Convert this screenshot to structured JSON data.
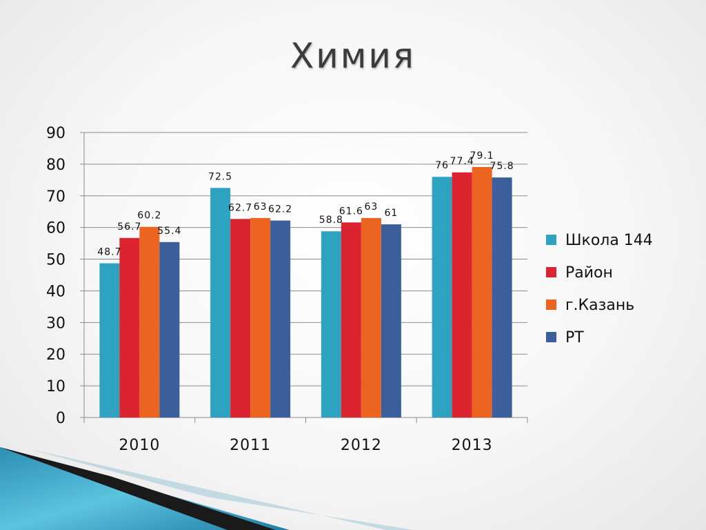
{
  "slide": {
    "title": "Химия"
  },
  "colors": {
    "s0": "#2ea3c1",
    "s1": "#dc2330",
    "s2": "#ec6420",
    "s3": "#3a5f9a"
  },
  "chart_data": {
    "type": "bar",
    "categories": [
      "2010",
      "2011",
      "2012",
      "2013"
    ],
    "series": [
      {
        "name": "Школа 144",
        "values": [
          48.7,
          72.5,
          58.8,
          76
        ]
      },
      {
        "name": "Район",
        "values": [
          56.7,
          62.7,
          61.6,
          77.4
        ]
      },
      {
        "name": "г.Казань",
        "values": [
          60.2,
          63,
          63,
          79.1
        ]
      },
      {
        "name": "РТ",
        "values": [
          55.4,
          62.2,
          61,
          75.8
        ]
      }
    ],
    "ylim": [
      0,
      90
    ],
    "yticks": [
      0,
      10,
      20,
      30,
      40,
      50,
      60,
      70,
      80,
      90
    ],
    "grid": true,
    "legend": "right"
  }
}
